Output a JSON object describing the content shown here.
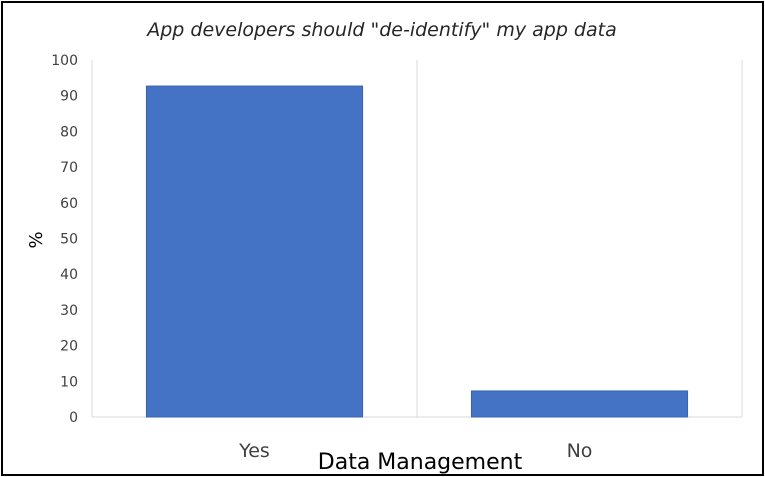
{
  "chart_data": {
    "type": "bar",
    "title": "App developers should \"de-identify\" my app data",
    "xlabel": "Data Management",
    "ylabel": "%",
    "categories": [
      "Yes",
      "No"
    ],
    "values": [
      92.7,
      7.3
    ],
    "ylim": [
      0,
      100
    ],
    "yticks": [
      "0",
      "10",
      "20",
      "30",
      "40",
      "50",
      "60",
      "70",
      "80",
      "90",
      "100"
    ],
    "bar_color": "#4472C4",
    "grid": true,
    "legend": "none"
  }
}
